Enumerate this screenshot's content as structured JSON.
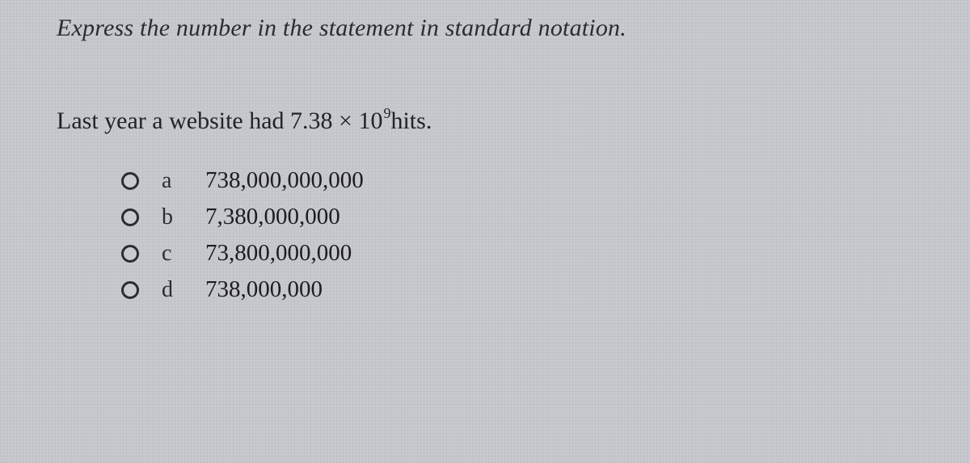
{
  "instruction": "Express the number in the statement in standard notation.",
  "statement": {
    "prefix": "Last year a website had ",
    "coefficient": "7.38",
    "times": " × ",
    "base": "10",
    "exponent": "9",
    "suffix": "hits."
  },
  "options": [
    {
      "letter": "a",
      "value": "738,000,000,000"
    },
    {
      "letter": "b",
      "value": "7,380,000,000"
    },
    {
      "letter": "c",
      "value": "73,800,000,000"
    },
    {
      "letter": "d",
      "value": "738,000,000"
    }
  ],
  "styling": {
    "background_color": "#c8cad0",
    "text_color": "#1c1c22",
    "instruction_fontsize": 30,
    "statement_fontsize": 30,
    "option_fontsize": 29,
    "radio_border_color": "#2b2b33",
    "font_family": "Georgia, serif"
  }
}
